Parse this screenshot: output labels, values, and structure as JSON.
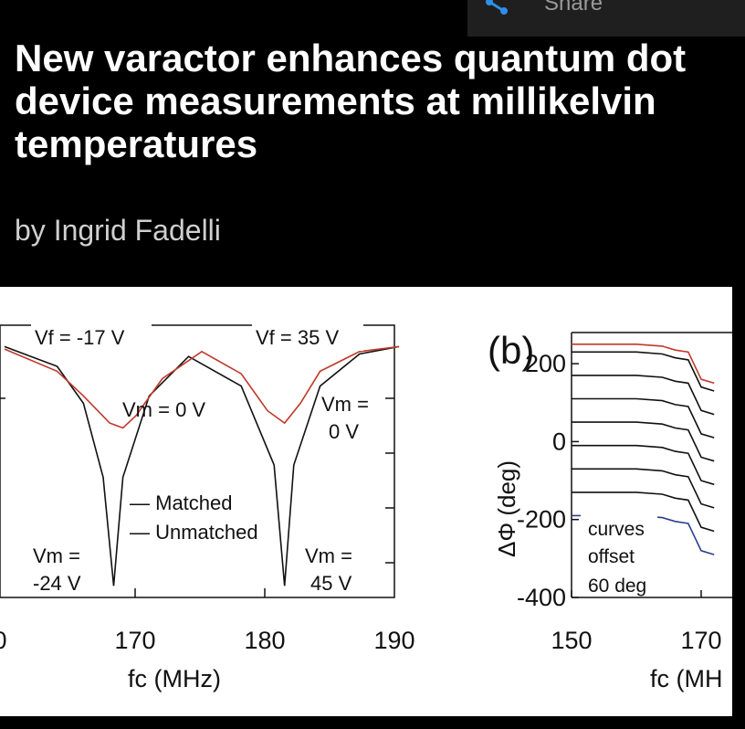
{
  "topbar": {
    "share_label": "Share",
    "share_icon": "share-icon"
  },
  "article": {
    "title": "New varactor enhances quantum dot device measurements at millikelvin temperatures",
    "byline": "by Ingrid Fadelli"
  },
  "figure": {
    "panel_a": {
      "vf_left": "Vf = -17 V",
      "vf_right": "Vf = 35 V",
      "vm_center": "Vm = 0 V",
      "vm_right_top_1": "Vm =",
      "vm_right_top_2": "0 V",
      "vm_left_bottom_1": "Vm =",
      "vm_left_bottom_2": "-24 V",
      "vm_right_bottom_1": "Vm =",
      "vm_right_bottom_2": "45 V",
      "legend_matched": "— Matched",
      "legend_unmatched": "— Unmatched",
      "xlabel": "fc (MHz)"
    },
    "panel_b": {
      "label": "(b)",
      "ylabel": "ΔΦ (deg)",
      "annotation_1": "curves",
      "annotation_2": "offset",
      "annotation_3": "60 deg",
      "xlabel": "fc (MH"
    }
  },
  "chart_data": [
    {
      "type": "line",
      "xticks": [
        "0",
        "170",
        "180",
        "190"
      ],
      "xlim": [
        160,
        190
      ],
      "xlabel": "fc (MHz)",
      "ylabel": "",
      "series": [
        {
          "name": "Matched",
          "color": "#111111",
          "x": [
            160,
            164,
            166,
            167.5,
            168.3,
            169,
            171,
            174,
            178,
            180.5,
            181.3,
            182,
            184,
            187,
            190
          ],
          "y": [
            0.02,
            0.1,
            0.25,
            0.55,
            0.99,
            0.55,
            0.22,
            0.06,
            0.18,
            0.5,
            0.99,
            0.5,
            0.18,
            0.05,
            0.02
          ]
        },
        {
          "name": "Unmatched",
          "color": "#c0392b",
          "x": [
            160,
            164,
            166,
            168,
            169,
            170,
            172,
            175,
            178,
            180,
            181.3,
            182.5,
            184,
            187,
            190
          ],
          "y": [
            0.03,
            0.12,
            0.22,
            0.33,
            0.35,
            0.3,
            0.15,
            0.04,
            0.13,
            0.28,
            0.33,
            0.25,
            0.12,
            0.04,
            0.02
          ]
        }
      ]
    },
    {
      "type": "line",
      "xticks": [
        "150",
        "170"
      ],
      "yticks": [
        "200",
        "0",
        "-200",
        "-400"
      ],
      "xlim": [
        150,
        170
      ],
      "ylim": [
        -400,
        280
      ],
      "xlabel": "fc (MH",
      "ylabel": "ΔΦ (deg)",
      "series": [
        {
          "name": "",
          "color": "#c0392b",
          "x": [
            146,
            160,
            164,
            166,
            168,
            170,
            172
          ],
          "y": [
            250,
            250,
            245,
            235,
            230,
            160,
            150
          ]
        },
        {
          "name": "",
          "color": "#111111",
          "x": [
            146,
            160,
            164,
            166,
            168,
            170,
            172
          ],
          "y": [
            230,
            230,
            225,
            215,
            210,
            140,
            130
          ]
        },
        {
          "name": "",
          "color": "#111111",
          "x": [
            146,
            160,
            164,
            166,
            168,
            170,
            172
          ],
          "y": [
            170,
            170,
            165,
            155,
            150,
            80,
            70
          ]
        },
        {
          "name": "",
          "color": "#111111",
          "x": [
            146,
            160,
            164,
            166,
            168,
            170,
            172
          ],
          "y": [
            110,
            110,
            105,
            95,
            90,
            20,
            10
          ]
        },
        {
          "name": "",
          "color": "#111111",
          "x": [
            146,
            160,
            164,
            166,
            168,
            170,
            172
          ],
          "y": [
            50,
            50,
            45,
            35,
            30,
            -40,
            -50
          ]
        },
        {
          "name": "",
          "color": "#111111",
          "x": [
            146,
            160,
            164,
            166,
            168,
            170,
            172
          ],
          "y": [
            -10,
            -10,
            -15,
            -25,
            -30,
            -100,
            -110
          ]
        },
        {
          "name": "",
          "color": "#111111",
          "x": [
            146,
            160,
            164,
            166,
            168,
            170,
            172
          ],
          "y": [
            -70,
            -70,
            -75,
            -85,
            -90,
            -160,
            -170
          ]
        },
        {
          "name": "",
          "color": "#111111",
          "x": [
            146,
            160,
            164,
            166,
            168,
            170,
            172
          ],
          "y": [
            -130,
            -130,
            -135,
            -145,
            -150,
            -220,
            -230
          ]
        },
        {
          "name": "",
          "color": "#2c3e8f",
          "x": [
            146,
            160,
            164,
            166,
            168,
            170,
            172
          ],
          "y": [
            -190,
            -190,
            -195,
            -205,
            -210,
            -280,
            -290
          ]
        }
      ]
    }
  ]
}
